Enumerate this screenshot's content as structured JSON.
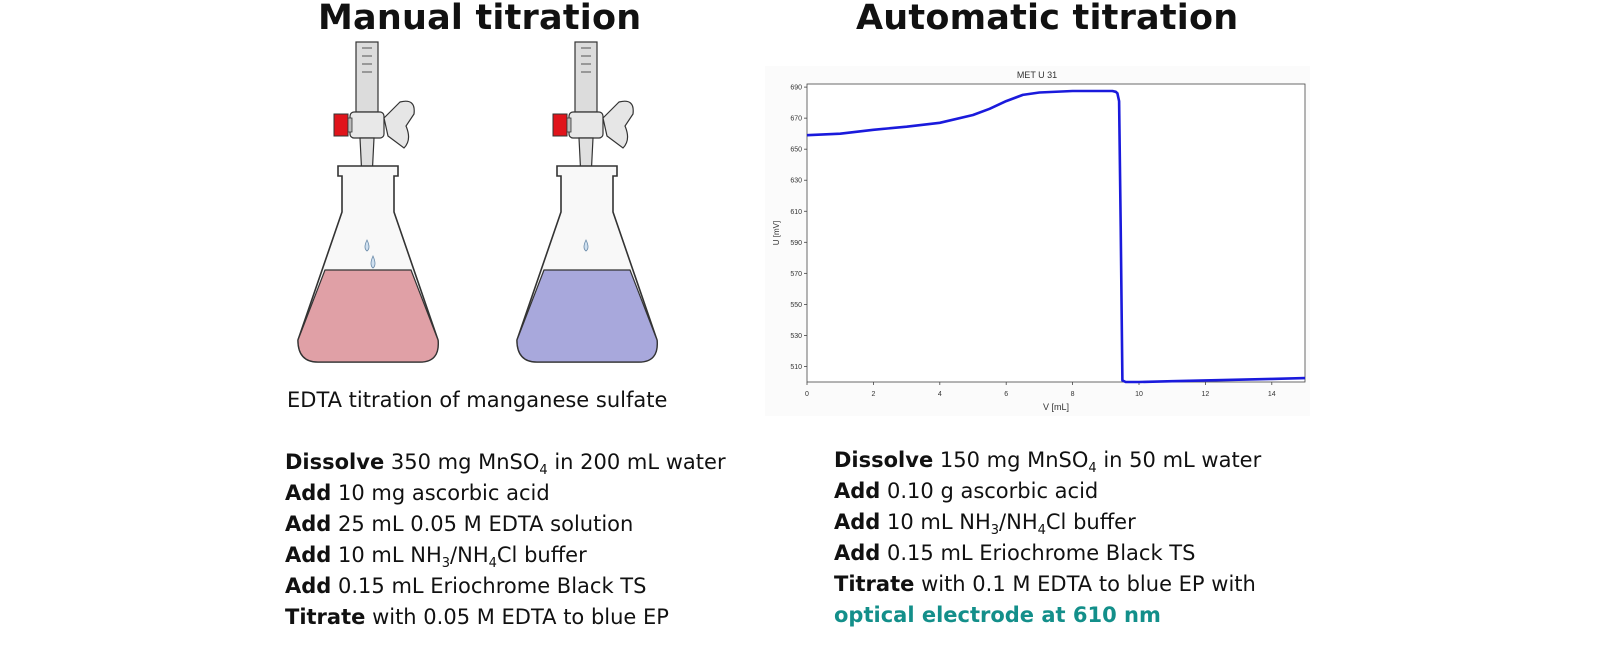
{
  "manual": {
    "title": "Manual titration",
    "caption": "EDTA titration of manganese sulfate",
    "steps": [
      {
        "verb": "Dissolve",
        "parts": [
          "350 mg MnSO",
          "4",
          " in 200 mL water"
        ]
      },
      {
        "verb": "Add",
        "parts": [
          "10 mg ascorbic acid"
        ]
      },
      {
        "verb": "Add",
        "parts": [
          "25 mL 0.05 M EDTA solution"
        ]
      },
      {
        "verb": "Add",
        "parts": [
          "10 mL NH",
          "3",
          "/NH",
          "4",
          "Cl buffer"
        ]
      },
      {
        "verb": "Add",
        "parts": [
          "0.15 mL Eriochrome Black TS"
        ]
      },
      {
        "verb": "Titrate",
        "parts": [
          "with 0.05 M EDTA to blue EP"
        ]
      }
    ],
    "flask_colors": {
      "before": "#e0a0a6",
      "after": "#a8a8dc"
    },
    "stopcock_color": "#e0141b"
  },
  "automatic": {
    "title": "Automatic titration",
    "steps": [
      {
        "verb": "Dissolve",
        "parts": [
          "150 mg MnSO",
          "4",
          " in 50 mL water"
        ]
      },
      {
        "verb": "Add",
        "parts": [
          "0.10 g ascorbic acid"
        ]
      },
      {
        "verb": "Add",
        "parts": [
          "10 mL NH",
          "3",
          "/NH",
          "4",
          "Cl buffer"
        ]
      },
      {
        "verb": "Add",
        "parts": [
          "0.15 mL Eriochrome Black TS"
        ]
      },
      {
        "verb": "Titrate",
        "parts": [
          "with 0.1 M EDTA to blue EP with"
        ]
      }
    ],
    "highlight": "optical electrode at 610 nm",
    "highlight_color": "#138f8a"
  },
  "chart_data": {
    "type": "line",
    "title": "MET U 31",
    "xlabel": "V [mL]",
    "ylabel": "U [mV]",
    "xlim": [
      0,
      15
    ],
    "ylim": [
      500,
      692
    ],
    "x_ticks": [
      "0",
      "2",
      "4",
      "6",
      "8",
      "10",
      "12",
      "14"
    ],
    "y_ticks": [
      "510",
      "530",
      "550",
      "570",
      "590",
      "610",
      "630",
      "650",
      "670",
      "690"
    ],
    "grid": false,
    "line_color": "#1a1adc",
    "series": [
      {
        "x": [
          0,
          1,
          2,
          3,
          4,
          5,
          5.5,
          6,
          6.5,
          7,
          8,
          8.8,
          9.2,
          9.3,
          9.35,
          9.4,
          9.45,
          9.5,
          9.6,
          10,
          11,
          12,
          13,
          14,
          15
        ],
        "y": [
          659,
          660,
          662.5,
          664.5,
          667,
          672,
          676,
          681,
          685,
          686.5,
          687.5,
          687.5,
          687.5,
          687,
          686,
          681,
          600,
          501,
          500,
          500,
          500.5,
          501,
          501.5,
          502,
          502.5
        ]
      }
    ]
  }
}
